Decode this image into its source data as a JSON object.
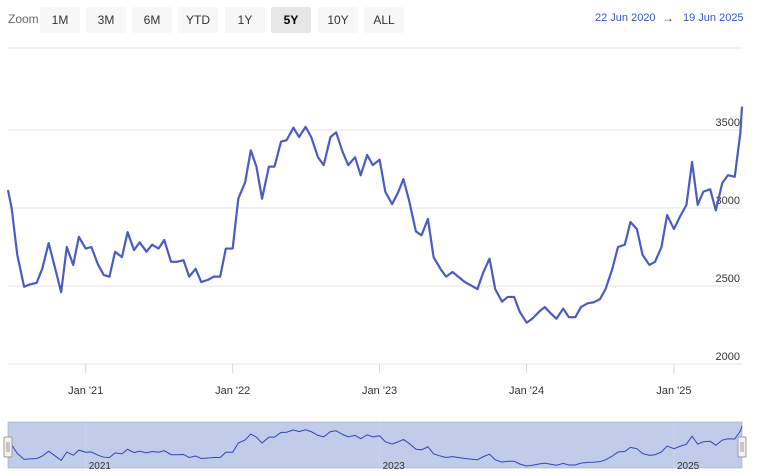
{
  "toolbar": {
    "zoom_label": "Zoom",
    "buttons": [
      "1M",
      "3M",
      "6M",
      "YTD",
      "1Y",
      "5Y",
      "10Y",
      "ALL"
    ],
    "selected_button": 5,
    "range_from": "22 Jun 2020",
    "range_arrow": "→",
    "range_to": "19 Jun 2025"
  },
  "chart_data": {
    "type": "line",
    "x": [
      "2020-06-22",
      "2020-07-01",
      "2020-07-15",
      "2020-08-01",
      "2020-08-15",
      "2020-09-01",
      "2020-09-15",
      "2020-10-01",
      "2020-10-15",
      "2020-11-01",
      "2020-11-15",
      "2020-12-01",
      "2020-12-15",
      "2021-01-01",
      "2021-01-15",
      "2021-02-01",
      "2021-02-15",
      "2021-03-01",
      "2021-03-15",
      "2021-04-01",
      "2021-04-15",
      "2021-05-01",
      "2021-05-15",
      "2021-06-01",
      "2021-06-15",
      "2021-07-01",
      "2021-07-15",
      "2021-08-01",
      "2021-08-15",
      "2021-09-01",
      "2021-09-15",
      "2021-10-01",
      "2021-10-15",
      "2021-11-01",
      "2021-11-15",
      "2021-12-01",
      "2021-12-15",
      "2022-01-01",
      "2022-01-15",
      "2022-02-01",
      "2022-02-15",
      "2022-03-01",
      "2022-03-15",
      "2022-04-01",
      "2022-04-15",
      "2022-05-01",
      "2022-05-15",
      "2022-06-01",
      "2022-06-15",
      "2022-07-01",
      "2022-07-15",
      "2022-08-01",
      "2022-08-15",
      "2022-09-01",
      "2022-09-15",
      "2022-10-01",
      "2022-10-15",
      "2022-11-01",
      "2022-11-15",
      "2022-12-01",
      "2022-12-15",
      "2023-01-01",
      "2023-01-15",
      "2023-02-01",
      "2023-02-15",
      "2023-03-01",
      "2023-03-15",
      "2023-04-01",
      "2023-04-15",
      "2023-05-01",
      "2023-05-15",
      "2023-06-01",
      "2023-06-15",
      "2023-07-01",
      "2023-07-15",
      "2023-08-01",
      "2023-08-15",
      "2023-09-01",
      "2023-09-15",
      "2023-10-01",
      "2023-10-15",
      "2023-11-01",
      "2023-11-15",
      "2023-12-01",
      "2023-12-15",
      "2024-01-01",
      "2024-01-15",
      "2024-02-01",
      "2024-02-15",
      "2024-03-01",
      "2024-03-15",
      "2024-04-01",
      "2024-04-15",
      "2024-05-01",
      "2024-05-15",
      "2024-06-01",
      "2024-06-15",
      "2024-07-01",
      "2024-07-15",
      "2024-08-01",
      "2024-08-15",
      "2024-09-01",
      "2024-09-15",
      "2024-10-01",
      "2024-10-15",
      "2024-11-01",
      "2024-11-15",
      "2024-12-01",
      "2024-12-15",
      "2025-01-01",
      "2025-01-15",
      "2025-02-01",
      "2025-02-15",
      "2025-03-01",
      "2025-03-15",
      "2025-04-01",
      "2025-04-15",
      "2025-05-01",
      "2025-05-15",
      "2025-06-01",
      "2025-06-15",
      "2025-06-19"
    ],
    "series": [
      {
        "color": "#4a5bc4",
        "values": [
          3115,
          3000,
          2700,
          2495,
          2510,
          2520,
          2610,
          2775,
          2635,
          2460,
          2750,
          2635,
          2815,
          2740,
          2750,
          2635,
          2570,
          2560,
          2720,
          2685,
          2845,
          2730,
          2780,
          2720,
          2765,
          2740,
          2795,
          2655,
          2655,
          2665,
          2560,
          2610,
          2525,
          2540,
          2560,
          2560,
          2740,
          2740,
          3060,
          3165,
          3370,
          3265,
          3060,
          3265,
          3265,
          3425,
          3435,
          3515,
          3455,
          3520,
          3455,
          3325,
          3275,
          3455,
          3485,
          3360,
          3275,
          3325,
          3210,
          3340,
          3275,
          3310,
          3105,
          3025,
          3095,
          3185,
          3050,
          2850,
          2825,
          2930,
          2685,
          2610,
          2560,
          2590,
          2560,
          2525,
          2505,
          2480,
          2585,
          2675,
          2480,
          2400,
          2430,
          2430,
          2335,
          2265,
          2290,
          2335,
          2365,
          2325,
          2290,
          2355,
          2300,
          2300,
          2365,
          2390,
          2395,
          2415,
          2480,
          2610,
          2750,
          2765,
          2910,
          2865,
          2700,
          2635,
          2655,
          2750,
          2955,
          2865,
          2940,
          3020,
          3295,
          3020,
          3105,
          3120,
          2985,
          3160,
          3210,
          3200,
          3485,
          3650
        ]
      }
    ],
    "xlim": [
      "2020-06-22",
      "2025-06-19"
    ],
    "xticks": [
      {
        "value": "2021-01-01",
        "label": "Jan '21"
      },
      {
        "value": "2022-01-01",
        "label": "Jan '22"
      },
      {
        "value": "2023-01-01",
        "label": "Jan '23"
      },
      {
        "value": "2024-01-01",
        "label": "Jan '24"
      },
      {
        "value": "2025-01-01",
        "label": "Jan '25"
      }
    ],
    "ylim": [
      2000,
      4000
    ],
    "yticks": [
      2000,
      2500,
      3000,
      3500
    ],
    "grid": true,
    "navigator": {
      "xticks": [
        {
          "value": "2021-01-01",
          "label": "2021"
        },
        {
          "value": "2023-01-01",
          "label": "2023"
        },
        {
          "value": "2025-01-01",
          "label": "2025"
        }
      ]
    }
  }
}
